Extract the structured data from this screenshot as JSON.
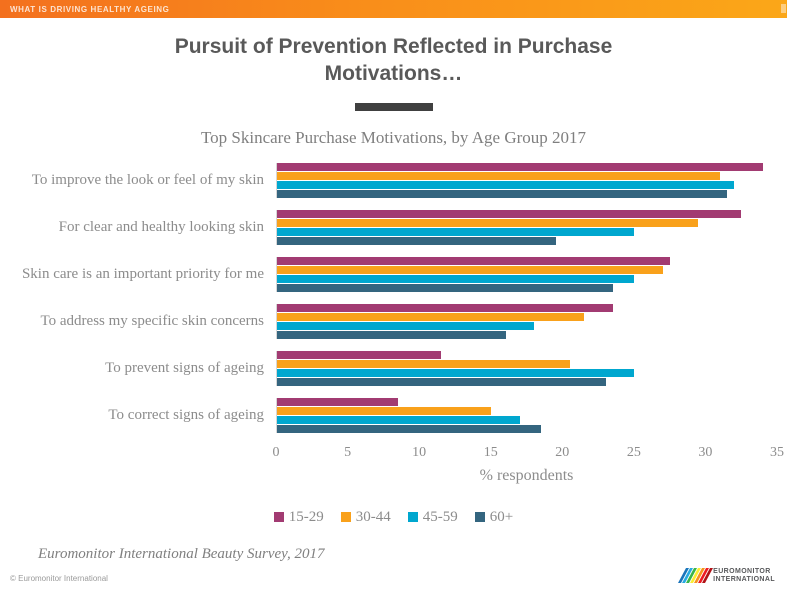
{
  "header": {
    "title": "WHAT IS DRIVING HEALTHY AGEING"
  },
  "slide": {
    "title": "Pursuit of Prevention Reflected in Purchase Motivations…",
    "subtitle": "Top Skincare Purchase Motivations, by Age Group 2017"
  },
  "chart_data": {
    "type": "bar",
    "orientation": "horizontal",
    "title": "Top Skincare Purchase Motivations, by Age Group 2017",
    "categories": [
      "To improve the look or feel of my skin",
      "For clear and healthy looking skin",
      "Skin care is an important priority for me",
      "To address my specific skin concerns",
      "To prevent signs of ageing",
      "To correct signs of ageing"
    ],
    "series": [
      {
        "name": "15-29",
        "color": "#a23b72",
        "values": [
          34,
          32.5,
          27.5,
          23.5,
          11.5,
          8.5
        ]
      },
      {
        "name": "30-44",
        "color": "#f9a11b",
        "values": [
          31,
          29.5,
          27,
          21.5,
          20.5,
          15
        ]
      },
      {
        "name": "45-59",
        "color": "#00a7cf",
        "values": [
          32,
          25,
          25,
          18,
          25,
          17
        ]
      },
      {
        "name": "60+",
        "color": "#34657f",
        "values": [
          31.5,
          19.5,
          23.5,
          16,
          23,
          18.5
        ]
      }
    ],
    "xlabel": "% respondents",
    "xlim": [
      0,
      35
    ],
    "xticks": [
      0,
      5,
      10,
      15,
      20,
      25,
      30,
      35
    ],
    "grid": false,
    "legend_position": "bottom"
  },
  "footer": {
    "source": "Euromonitor International Beauty Survey, 2017",
    "copyright": "© Euromonitor  International",
    "logo_line1": "EUROMONITOR",
    "logo_line2": "INTERNATIONAL"
  },
  "logo_colors": [
    "#1b75bb",
    "#27aae1",
    "#39b54a",
    "#f9ed32",
    "#f7941e",
    "#ed1c24",
    "#b11116"
  ]
}
